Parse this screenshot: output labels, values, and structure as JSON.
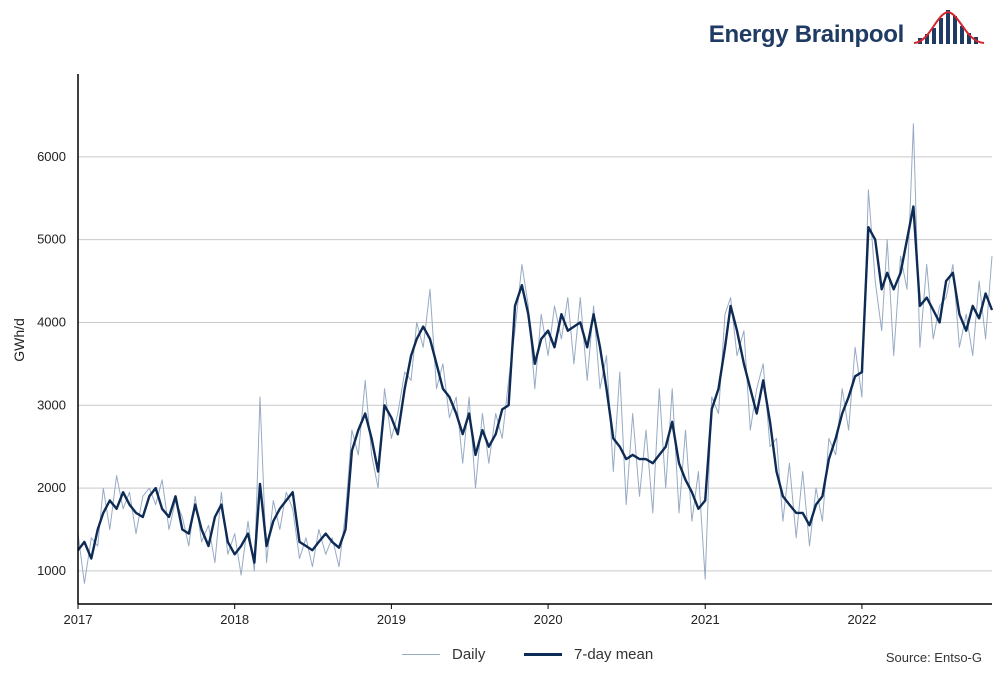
{
  "brand": {
    "name": "Energy Brainpool",
    "logo_icon": "bar-bell-curve-icon",
    "accent_dark": "#1f3b63",
    "accent_red": "#d6252d"
  },
  "chart_data": {
    "type": "line",
    "title": "",
    "xlabel": "",
    "ylabel": "GWh/d",
    "xlim": [
      "2017-01-01",
      "2022-10-31"
    ],
    "ylim": [
      600,
      7000
    ],
    "yticks": [
      1000,
      2000,
      3000,
      4000,
      5000,
      6000
    ],
    "xticks": [
      "2017",
      "2018",
      "2019",
      "2020",
      "2021",
      "2022"
    ],
    "grid": "horizontal",
    "legend_position": "bottom",
    "series": [
      {
        "name": "7-day mean",
        "color": "#0d2b55",
        "x": [
          "2017-01-01",
          "2017-01-16",
          "2017-02-01",
          "2017-02-16",
          "2017-03-01",
          "2017-03-16",
          "2017-04-01",
          "2017-04-16",
          "2017-05-01",
          "2017-05-16",
          "2017-06-01",
          "2017-06-16",
          "2017-07-01",
          "2017-07-16",
          "2017-08-01",
          "2017-08-16",
          "2017-09-01",
          "2017-09-16",
          "2017-10-01",
          "2017-10-16",
          "2017-11-01",
          "2017-11-16",
          "2017-12-01",
          "2017-12-16",
          "2018-01-01",
          "2018-01-16",
          "2018-02-01",
          "2018-02-16",
          "2018-03-01",
          "2018-03-16",
          "2018-04-01",
          "2018-04-16",
          "2018-05-01",
          "2018-05-16",
          "2018-06-01",
          "2018-06-16",
          "2018-07-01",
          "2018-07-16",
          "2018-08-01",
          "2018-08-16",
          "2018-09-01",
          "2018-09-16",
          "2018-10-01",
          "2018-10-16",
          "2018-11-01",
          "2018-11-16",
          "2018-12-01",
          "2018-12-16",
          "2019-01-01",
          "2019-01-16",
          "2019-02-01",
          "2019-02-16",
          "2019-03-01",
          "2019-03-16",
          "2019-04-01",
          "2019-04-16",
          "2019-05-01",
          "2019-05-16",
          "2019-06-01",
          "2019-06-16",
          "2019-07-01",
          "2019-07-16",
          "2019-08-01",
          "2019-08-16",
          "2019-09-01",
          "2019-09-16",
          "2019-10-01",
          "2019-10-16",
          "2019-11-01",
          "2019-11-16",
          "2019-12-01",
          "2019-12-16",
          "2020-01-01",
          "2020-01-16",
          "2020-02-01",
          "2020-02-16",
          "2020-03-01",
          "2020-03-16",
          "2020-04-01",
          "2020-04-16",
          "2020-05-01",
          "2020-05-16",
          "2020-06-01",
          "2020-06-16",
          "2020-07-01",
          "2020-07-16",
          "2020-08-01",
          "2020-08-16",
          "2020-09-01",
          "2020-09-16",
          "2020-10-01",
          "2020-10-16",
          "2020-11-01",
          "2020-11-16",
          "2020-12-01",
          "2020-12-16",
          "2021-01-01",
          "2021-01-16",
          "2021-02-01",
          "2021-02-16",
          "2021-03-01",
          "2021-03-16",
          "2021-04-01",
          "2021-04-16",
          "2021-05-01",
          "2021-05-16",
          "2021-06-01",
          "2021-06-16",
          "2021-07-01",
          "2021-07-16",
          "2021-08-01",
          "2021-08-16",
          "2021-09-01",
          "2021-09-16",
          "2021-10-01",
          "2021-10-16",
          "2021-11-01",
          "2021-11-16",
          "2021-12-01",
          "2021-12-16",
          "2022-01-01",
          "2022-01-16",
          "2022-02-01",
          "2022-02-16",
          "2022-03-01",
          "2022-03-16",
          "2022-04-01",
          "2022-04-16",
          "2022-05-01",
          "2022-05-16",
          "2022-06-01",
          "2022-06-16",
          "2022-07-01",
          "2022-07-16",
          "2022-08-01",
          "2022-08-16",
          "2022-09-01",
          "2022-09-16",
          "2022-10-01",
          "2022-10-16",
          "2022-10-31"
        ],
        "values": [
          1250,
          1350,
          1150,
          1500,
          1700,
          1850,
          1750,
          1950,
          1800,
          1700,
          1650,
          1900,
          2000,
          1750,
          1650,
          1900,
          1500,
          1450,
          1800,
          1500,
          1300,
          1650,
          1800,
          1350,
          1200,
          1300,
          1450,
          1100,
          2050,
          1300,
          1600,
          1750,
          1850,
          1950,
          1350,
          1300,
          1250,
          1350,
          1450,
          1350,
          1280,
          1500,
          2450,
          2700,
          2900,
          2600,
          2200,
          3000,
          2850,
          2650,
          3200,
          3600,
          3800,
          3950,
          3800,
          3500,
          3200,
          3100,
          2900,
          2650,
          2900,
          2400,
          2700,
          2500,
          2650,
          2950,
          3000,
          4200,
          4450,
          4100,
          3500,
          3800,
          3900,
          3700,
          4100,
          3900,
          3950,
          4000,
          3700,
          4100,
          3700,
          3200,
          2600,
          2500,
          2350,
          2400,
          2350,
          2350,
          2300,
          2400,
          2500,
          2800,
          2300,
          2100,
          1950,
          1750,
          1850,
          2950,
          3200,
          3700,
          4200,
          3900,
          3500,
          3200,
          2900,
          3300,
          2800,
          2200,
          1900,
          1800,
          1700,
          1700,
          1550,
          1800,
          1900,
          2350,
          2600,
          2900,
          3100,
          3350,
          3400,
          5150,
          5000,
          4400,
          4600,
          4400,
          4600,
          5000,
          5400,
          4200,
          4300,
          4150,
          4000,
          4500,
          4600,
          4100,
          3900,
          4200,
          4050,
          4350,
          4150
        ]
      },
      {
        "name": "Daily",
        "color": "#97abc4",
        "x": [
          "2017-01-01",
          "2017-01-16",
          "2017-02-01",
          "2017-02-16",
          "2017-03-01",
          "2017-03-16",
          "2017-04-01",
          "2017-04-16",
          "2017-05-01",
          "2017-05-16",
          "2017-06-01",
          "2017-06-16",
          "2017-07-01",
          "2017-07-16",
          "2017-08-01",
          "2017-08-16",
          "2017-09-01",
          "2017-09-16",
          "2017-10-01",
          "2017-10-16",
          "2017-11-01",
          "2017-11-16",
          "2017-12-01",
          "2017-12-16",
          "2018-01-01",
          "2018-01-16",
          "2018-02-01",
          "2018-02-16",
          "2018-03-01",
          "2018-03-16",
          "2018-04-01",
          "2018-04-16",
          "2018-05-01",
          "2018-05-16",
          "2018-06-01",
          "2018-06-16",
          "2018-07-01",
          "2018-07-16",
          "2018-08-01",
          "2018-08-16",
          "2018-09-01",
          "2018-09-16",
          "2018-10-01",
          "2018-10-16",
          "2018-11-01",
          "2018-11-16",
          "2018-12-01",
          "2018-12-16",
          "2019-01-01",
          "2019-01-16",
          "2019-02-01",
          "2019-02-16",
          "2019-03-01",
          "2019-03-16",
          "2019-04-01",
          "2019-04-16",
          "2019-05-01",
          "2019-05-16",
          "2019-06-01",
          "2019-06-16",
          "2019-07-01",
          "2019-07-16",
          "2019-08-01",
          "2019-08-16",
          "2019-09-01",
          "2019-09-16",
          "2019-10-01",
          "2019-10-16",
          "2019-11-01",
          "2019-11-16",
          "2019-12-01",
          "2019-12-16",
          "2020-01-01",
          "2020-01-16",
          "2020-02-01",
          "2020-02-16",
          "2020-03-01",
          "2020-03-16",
          "2020-04-01",
          "2020-04-16",
          "2020-05-01",
          "2020-05-16",
          "2020-06-01",
          "2020-06-16",
          "2020-07-01",
          "2020-07-16",
          "2020-08-01",
          "2020-08-16",
          "2020-09-01",
          "2020-09-16",
          "2020-10-01",
          "2020-10-16",
          "2020-11-01",
          "2020-11-16",
          "2020-12-01",
          "2020-12-16",
          "2021-01-01",
          "2021-01-16",
          "2021-02-01",
          "2021-02-16",
          "2021-03-01",
          "2021-03-16",
          "2021-04-01",
          "2021-04-16",
          "2021-05-01",
          "2021-05-16",
          "2021-06-01",
          "2021-06-16",
          "2021-07-01",
          "2021-07-16",
          "2021-08-01",
          "2021-08-16",
          "2021-09-01",
          "2021-09-16",
          "2021-10-01",
          "2021-10-16",
          "2021-11-01",
          "2021-11-16",
          "2021-12-01",
          "2021-12-16",
          "2022-01-01",
          "2022-01-16",
          "2022-02-01",
          "2022-02-16",
          "2022-03-01",
          "2022-03-16",
          "2022-04-01",
          "2022-04-16",
          "2022-05-01",
          "2022-05-16",
          "2022-06-01",
          "2022-06-16",
          "2022-07-01",
          "2022-07-16",
          "2022-08-01",
          "2022-08-16",
          "2022-09-01",
          "2022-09-16",
          "2022-10-01",
          "2022-10-16",
          "2022-10-31"
        ],
        "values": [
          1450,
          850,
          1400,
          1300,
          2000,
          1500,
          2150,
          1750,
          1950,
          1450,
          1900,
          2000,
          1800,
          2100,
          1500,
          1850,
          1650,
          1300,
          1900,
          1350,
          1550,
          1100,
          1950,
          1200,
          1450,
          950,
          1600,
          1000,
          3100,
          1100,
          1850,
          1500,
          1950,
          1750,
          1150,
          1400,
          1050,
          1500,
          1200,
          1400,
          1050,
          1700,
          2700,
          2400,
          3300,
          2400,
          2000,
          3200,
          2600,
          2900,
          3400,
          3300,
          4000,
          3700,
          4400,
          3200,
          3500,
          2850,
          3100,
          2300,
          3100,
          2000,
          2900,
          2300,
          2900,
          2600,
          3300,
          3900,
          4700,
          4200,
          3200,
          4100,
          3600,
          4200,
          3800,
          4300,
          3500,
          4300,
          3300,
          4200,
          3200,
          3600,
          2200,
          3400,
          1800,
          2900,
          1900,
          2700,
          1700,
          3200,
          2000,
          3200,
          1700,
          2700,
          1600,
          2200,
          900,
          3100,
          2900,
          4100,
          4300,
          3600,
          3900,
          2700,
          3200,
          3500,
          2500,
          2600,
          1600,
          2300,
          1400,
          2200,
          1300,
          2000,
          1600,
          2600,
          2400,
          3200,
          2700,
          3700,
          3100,
          5600,
          4500,
          3900,
          5000,
          3600,
          4800,
          4400,
          6400,
          3700,
          4700,
          3800,
          4200,
          4300,
          4700,
          3700,
          4100,
          3600,
          4500,
          3800,
          4800
        ]
      }
    ]
  },
  "legend": {
    "items": [
      {
        "label": "Daily",
        "color": "#97abc4"
      },
      {
        "label": "7-day mean",
        "color": "#0d2b55"
      }
    ]
  },
  "source": "Source: Entso-G"
}
